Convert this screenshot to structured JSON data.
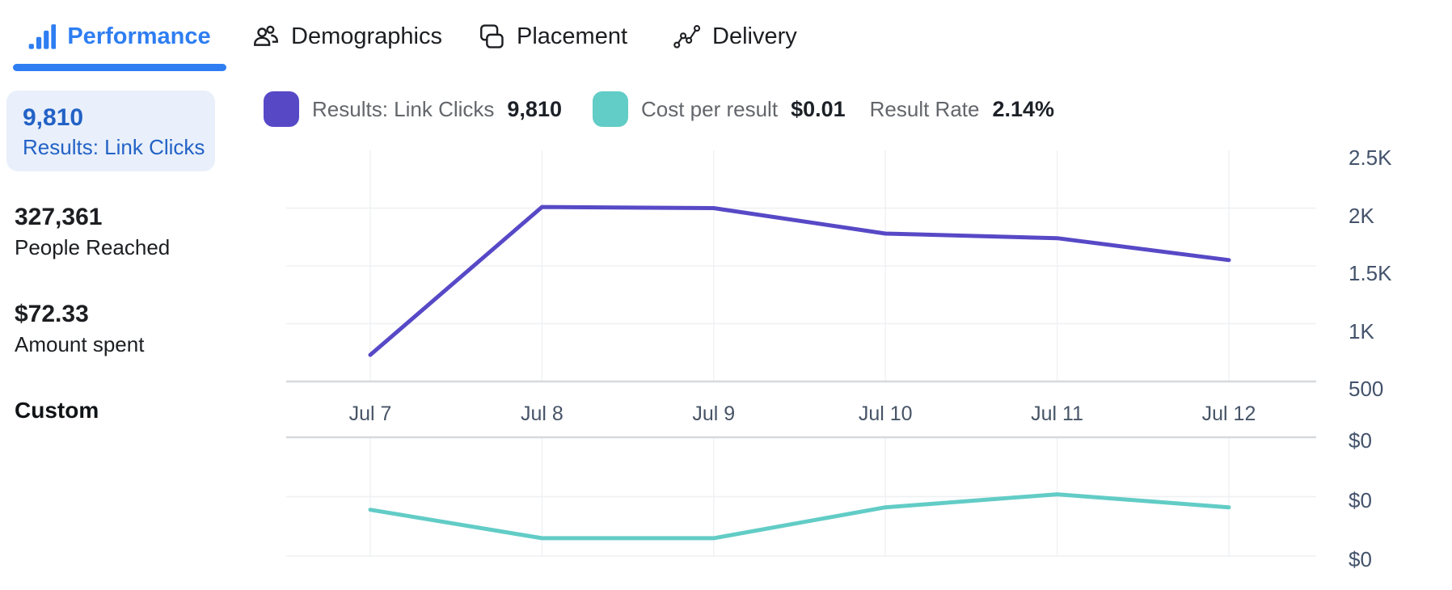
{
  "tabs": [
    {
      "label": "Performance",
      "icon": "bar-chart-icon",
      "active": true
    },
    {
      "label": "Demographics",
      "icon": "people-icon",
      "active": false
    },
    {
      "label": "Placement",
      "icon": "overlapping-squares-icon",
      "active": false
    },
    {
      "label": "Delivery",
      "icon": "trend-dots-icon",
      "active": false
    }
  ],
  "sidebar": {
    "metrics": [
      {
        "value": "9,810",
        "label": "Results: Link Clicks",
        "selected": true
      },
      {
        "value": "327,361",
        "label": "People Reached",
        "selected": false
      },
      {
        "value": "$72.33",
        "label": "Amount spent",
        "selected": false
      }
    ],
    "custom_label": "Custom"
  },
  "legend": {
    "items": [
      {
        "label": "Results: Link Clicks",
        "value": "9,810",
        "color": "#5749c6"
      },
      {
        "label": "Cost per result",
        "value": "$0.01",
        "color": "#62ccc6"
      },
      {
        "label": "Result Rate",
        "value": "2.14%",
        "color": null
      }
    ]
  },
  "chart_data": {
    "type": "line",
    "x": [
      "Jul 7",
      "Jul 8",
      "Jul 9",
      "Jul 10",
      "Jul 11",
      "Jul 12"
    ],
    "legend_position": "top",
    "grid": true,
    "panels": [
      {
        "name": "Results: Link Clicks",
        "color": "#5749c6",
        "values": [
          730,
          2010,
          2000,
          1780,
          1740,
          1550
        ],
        "total_displayed": "9,810",
        "ylim": [
          500,
          2500
        ],
        "ytick_values": [
          2500,
          2000,
          1500,
          1000,
          500
        ],
        "ytick_labels": [
          "2.5K",
          "2K",
          "1.5K",
          "1K",
          "500"
        ]
      },
      {
        "name": "Cost per result",
        "color": "#62ccc6",
        "values": [
          0.0039,
          0.0015,
          0.0015,
          0.0041,
          0.0052,
          0.0041
        ],
        "average_displayed": "$0.01",
        "ylim": [
          0,
          0.01
        ],
        "ytick_values": [
          0.01,
          0.005,
          0
        ],
        "ytick_labels": [
          "$0",
          "$0",
          "$0"
        ]
      }
    ],
    "result_rate_displayed": "2.14%"
  },
  "colors": {
    "accent_blue": "#2e7ef2",
    "selected_card_bg": "#e9f0fb",
    "selected_card_text": "#2362c6",
    "purple_series": "#5749c6",
    "teal_series": "#62ccc6",
    "axis_text": "#44536b",
    "grid_light": "#eef0f2",
    "axis_line": "#d6d9dd"
  }
}
